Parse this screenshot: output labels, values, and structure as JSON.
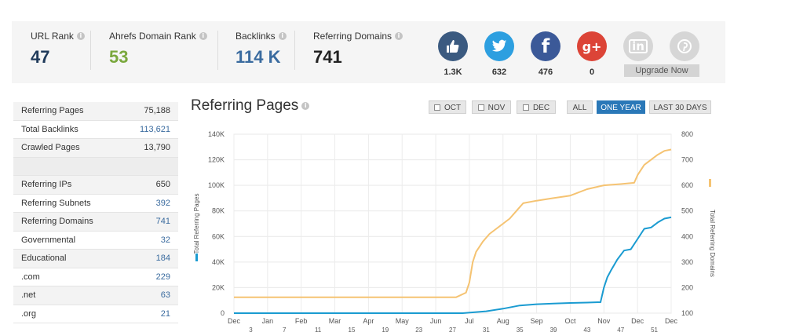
{
  "stats": {
    "url_rank": {
      "label": "URL Rank",
      "value": "47",
      "color": "#1f3a5a"
    },
    "domain_rank": {
      "label": "Ahrefs Domain Rank",
      "value": "53",
      "color": "#7aa83d"
    },
    "backlinks": {
      "label": "Backlinks",
      "value": "114 K",
      "color": "#3a6b9f"
    },
    "referring_domains": {
      "label": "Referring Domains",
      "value": "741",
      "color": "#222222"
    }
  },
  "social": [
    {
      "icon": "like-icon",
      "glyph": "👍",
      "count": "1.3K",
      "color": "#3b5a80"
    },
    {
      "icon": "twitter-icon",
      "glyph": "🐦",
      "count": "632",
      "color": "#2d9fe0"
    },
    {
      "icon": "facebook-icon",
      "glyph": "f",
      "count": "476",
      "color": "#3b5998"
    },
    {
      "icon": "google-plus-icon",
      "glyph": "g+",
      "count": "0",
      "color": "#dc4437"
    },
    {
      "icon": "linkedin-icon",
      "glyph": "in",
      "count": "",
      "color": "#d6d6d6"
    },
    {
      "icon": "pinterest-icon",
      "glyph": "p",
      "count": "",
      "color": "#d6d6d6"
    }
  ],
  "upgrade_label": "Upgrade Now",
  "table": [
    {
      "label": "Referring Pages",
      "value": "75,188",
      "blue": false
    },
    {
      "label": "Total Backlinks",
      "value": "113,621",
      "blue": true
    },
    {
      "label": "Crawled Pages",
      "value": "13,790",
      "blue": false
    },
    {
      "label": "",
      "value": "",
      "blue": false
    },
    {
      "label": "Referring IPs",
      "value": "650",
      "blue": false
    },
    {
      "label": "Referring Subnets",
      "value": "392",
      "blue": true
    },
    {
      "label": "Referring Domains",
      "value": "741",
      "blue": true
    },
    {
      "label": "Governmental",
      "value": "32",
      "blue": true
    },
    {
      "label": "Educational",
      "value": "184",
      "blue": true
    },
    {
      "label": ".com",
      "value": "229",
      "blue": true
    },
    {
      "label": ".net",
      "value": "63",
      "blue": true
    },
    {
      "label": ".org",
      "value": "21",
      "blue": true
    }
  ],
  "chart_header": {
    "title": "Referring Pages",
    "toggles": [
      "OCT",
      "NOV",
      "DEC"
    ],
    "ranges": [
      {
        "label": "ALL",
        "active": false
      },
      {
        "label": "ONE YEAR",
        "active": true
      },
      {
        "label": "LAST 30 DAYS",
        "active": false
      }
    ]
  },
  "chart_data": {
    "type": "line",
    "title": "",
    "xlabel": "",
    "ylabel": "Total Referring Pages",
    "y2label": "Total Referring Domains",
    "ylim": [
      0,
      140000
    ],
    "y2lim": [
      100,
      800
    ],
    "yticks": [
      "0",
      "20K",
      "40K",
      "60K",
      "80K",
      "100K",
      "120K",
      "140K"
    ],
    "y2ticks": [
      "100",
      "200",
      "300",
      "400",
      "500",
      "600",
      "700",
      "800"
    ],
    "x_month_labels": [
      "Dec",
      "Jan",
      "Feb",
      "Mar",
      "Apr",
      "May",
      "Jun",
      "Jul",
      "Aug",
      "Sep",
      "Oct",
      "Nov",
      "Dec",
      "Dec"
    ],
    "x_week_labels": [
      "3",
      "7",
      "11",
      "15",
      "19",
      "23",
      "27",
      "31",
      "35",
      "39",
      "43",
      "47",
      "51"
    ],
    "grid": true,
    "series": [
      {
        "name": "Total Referring Pages",
        "axis": "left",
        "color": "#1a9bd1",
        "x": [
          0,
          6.8,
          7.5,
          8.0,
          8.5,
          9.0,
          9.5,
          10.0,
          10.5,
          10.9,
          11.0,
          11.1,
          11.2,
          11.4,
          11.6,
          11.8,
          12.0,
          12.2,
          12.4,
          12.6,
          12.8,
          13.0
        ],
        "values": [
          0,
          0,
          1500,
          3500,
          6000,
          7000,
          7500,
          8000,
          8300,
          8600,
          20000,
          28000,
          33000,
          42000,
          49000,
          50000,
          58000,
          66000,
          67000,
          71000,
          74000,
          75000
        ]
      },
      {
        "name": "Total Referring Domains",
        "axis": "right",
        "color": "#f5c372",
        "x": [
          0,
          6.6,
          6.9,
          7.0,
          7.1,
          7.2,
          7.4,
          7.6,
          7.8,
          8.0,
          8.2,
          8.4,
          8.6,
          9.0,
          9.5,
          10.0,
          10.5,
          11.0,
          11.5,
          11.9,
          12.0,
          12.2,
          12.4,
          12.6,
          12.8,
          13.0
        ],
        "values": [
          162,
          162,
          180,
          220,
          300,
          340,
          380,
          410,
          430,
          450,
          470,
          500,
          530,
          540,
          550,
          560,
          585,
          600,
          605,
          610,
          640,
          680,
          700,
          720,
          735,
          740
        ]
      }
    ]
  }
}
